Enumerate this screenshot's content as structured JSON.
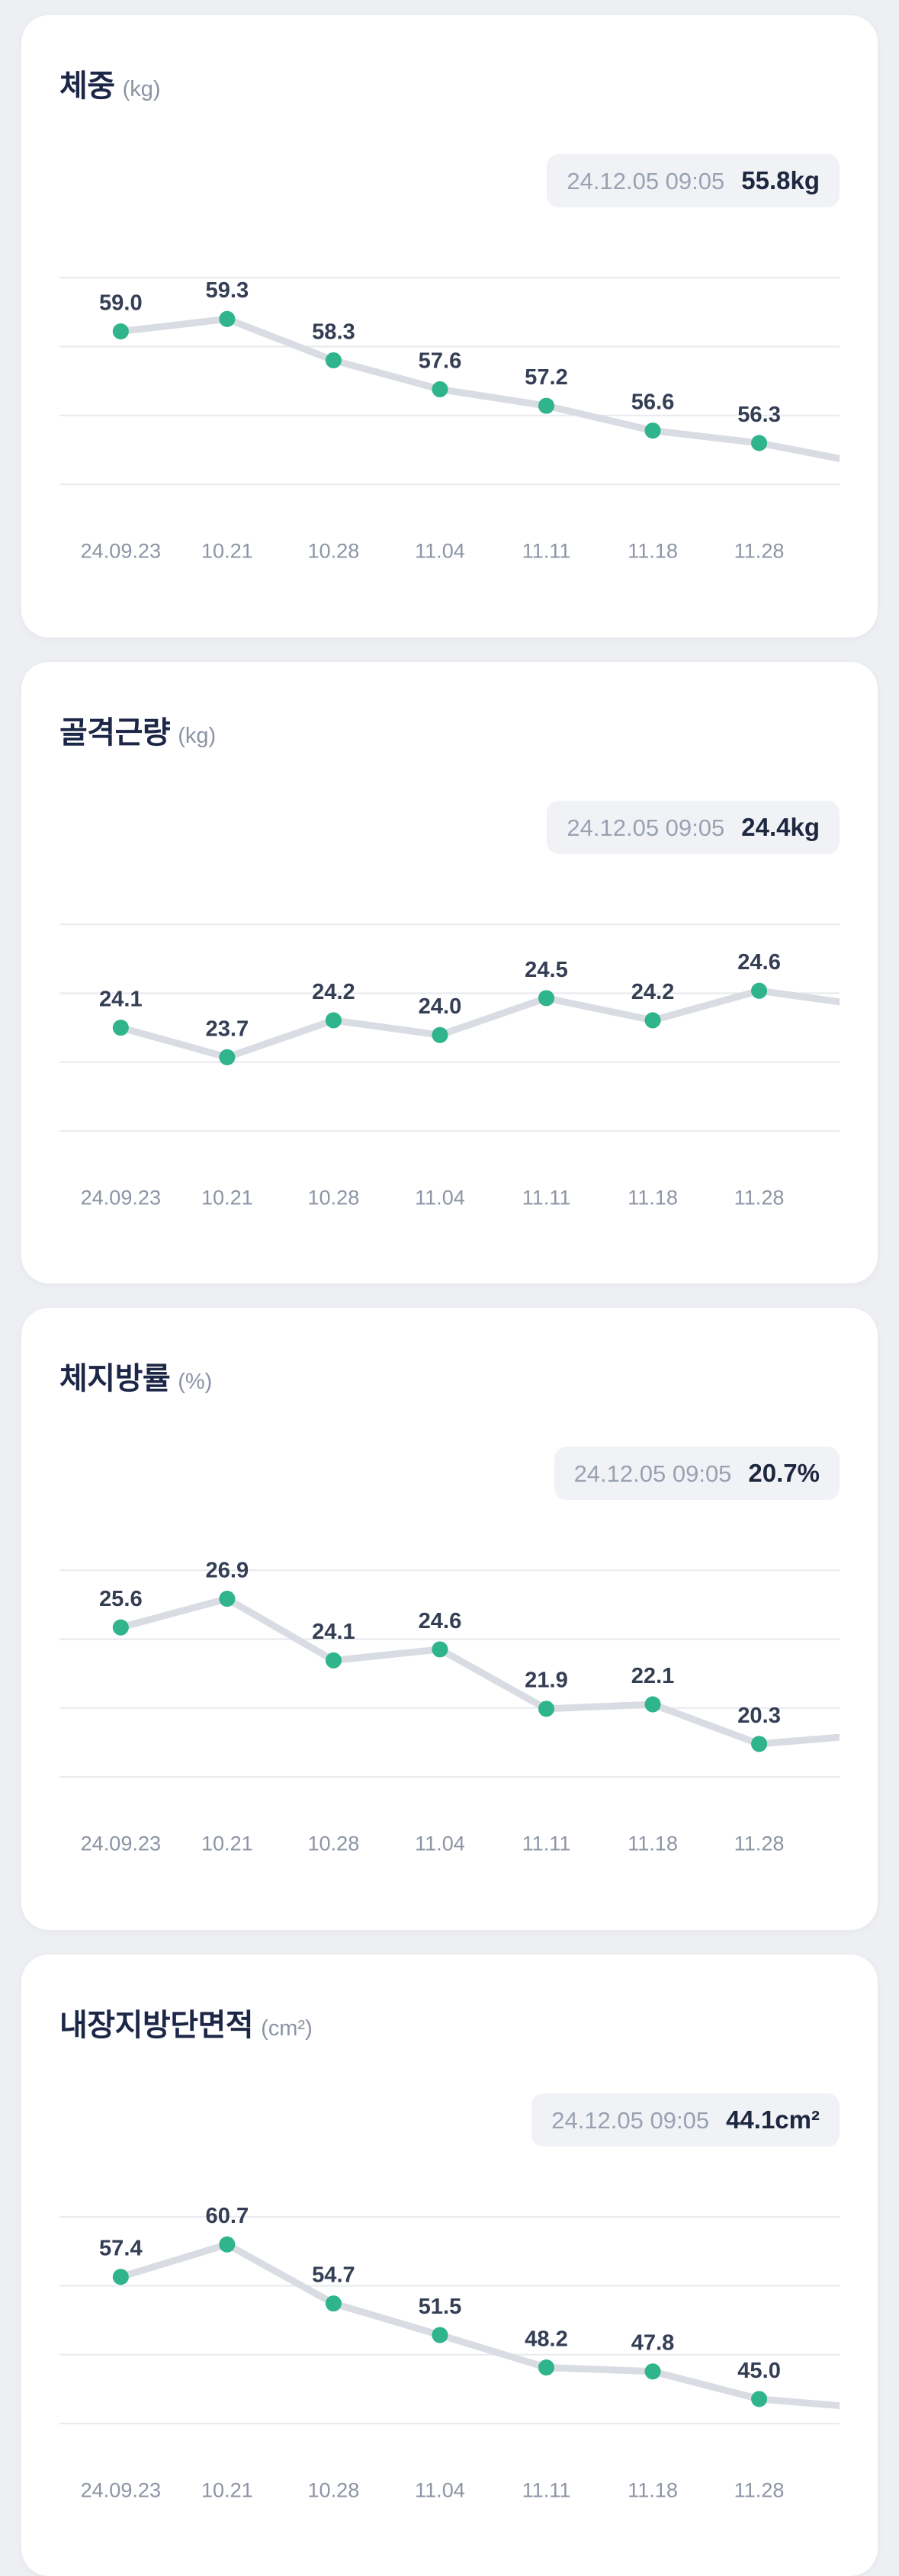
{
  "colors": {
    "page_background": "#edeff3",
    "card_background": "#ffffff",
    "grid_line": "#e8eaee",
    "trend_line": "#d9dce2",
    "dot": "#2fb48c",
    "value_label": "#343e54",
    "axis_label": "#8d95a5",
    "title": "#1c2647",
    "unit": "#8b93a4",
    "badge_background": "#f0f2f6",
    "badge_time": "#9aa2b2",
    "badge_value": "#1e2740"
  },
  "chart_data": [
    {
      "type": "line",
      "title": "체중",
      "unit": "(kg)",
      "badge": {
        "timestamp": "24.12.05 09:05",
        "value": "55.8kg"
      },
      "latest_numeric": 55.8,
      "categories": [
        "24.09.23",
        "10.21",
        "10.28",
        "11.04",
        "11.11",
        "11.18",
        "11.28"
      ],
      "values": [
        59.0,
        59.3,
        58.3,
        57.6,
        57.2,
        56.6,
        56.3
      ],
      "ylim": [
        55.3,
        60.3
      ],
      "grid": true,
      "legend": false
    },
    {
      "type": "line",
      "title": "골격근량",
      "unit": "(kg)",
      "badge": {
        "timestamp": "24.12.05 09:05",
        "value": "24.4kg"
      },
      "latest_numeric": 24.4,
      "categories": [
        "24.09.23",
        "10.21",
        "10.28",
        "11.04",
        "11.11",
        "11.18",
        "11.28"
      ],
      "values": [
        24.1,
        23.7,
        24.2,
        24.0,
        24.5,
        24.2,
        24.6
      ],
      "ylim": [
        22.7,
        25.5
      ],
      "grid": true,
      "legend": false
    },
    {
      "type": "line",
      "title": "체지방률",
      "unit": "(%)",
      "badge": {
        "timestamp": "24.12.05 09:05",
        "value": "20.7%"
      },
      "latest_numeric": 20.7,
      "categories": [
        "24.09.23",
        "10.21",
        "10.28",
        "11.04",
        "11.11",
        "11.18",
        "11.28"
      ],
      "values": [
        25.6,
        26.9,
        24.1,
        24.6,
        21.9,
        22.1,
        20.3
      ],
      "ylim": [
        18.8,
        28.2
      ],
      "grid": true,
      "legend": false
    },
    {
      "type": "line",
      "title": "내장지방단면적",
      "unit": "(cm²)",
      "badge": {
        "timestamp": "24.12.05 09:05",
        "value": "44.1cm²"
      },
      "latest_numeric": 44.1,
      "categories": [
        "24.09.23",
        "10.21",
        "10.28",
        "11.04",
        "11.11",
        "11.18",
        "11.28"
      ],
      "values": [
        57.4,
        60.7,
        54.7,
        51.5,
        48.2,
        47.8,
        45.0
      ],
      "ylim": [
        42.5,
        63.5
      ],
      "grid": true,
      "legend": false
    }
  ]
}
